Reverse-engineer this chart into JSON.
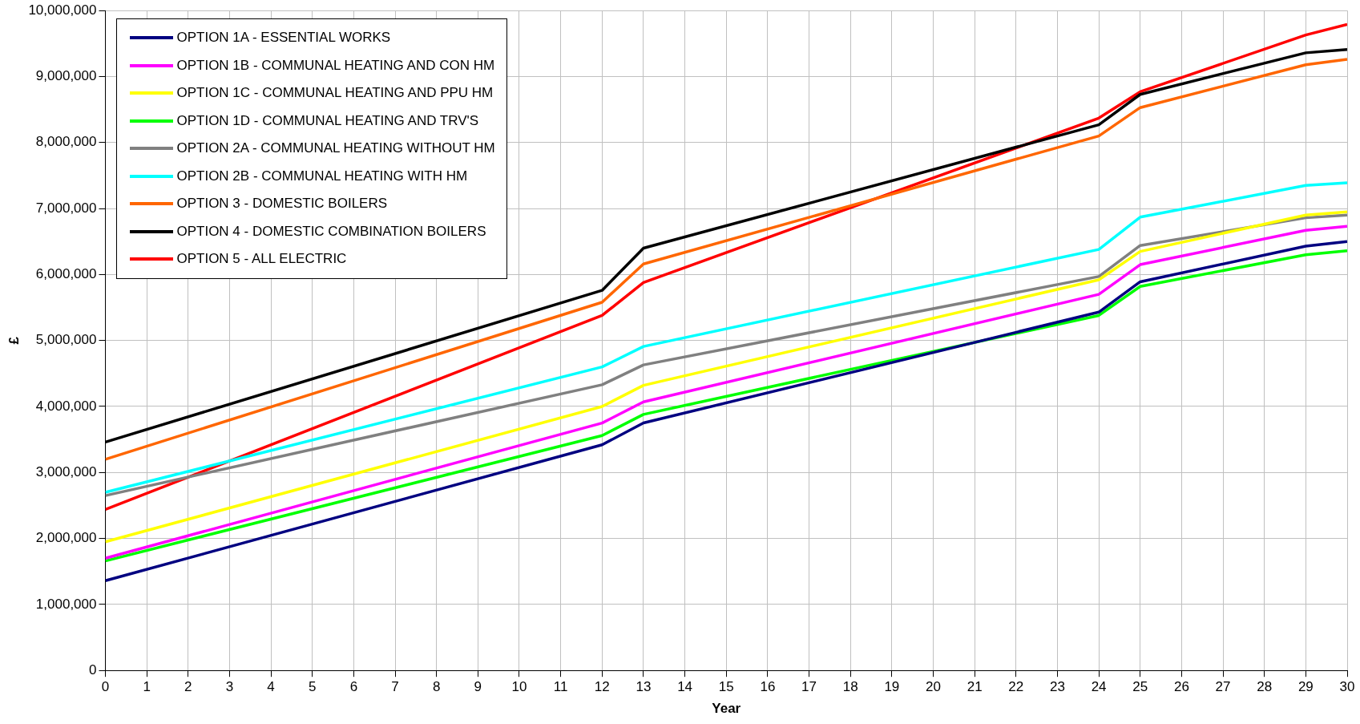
{
  "chart_data": {
    "type": "line",
    "xlabel": "Year",
    "ylabel": "£",
    "xlim": [
      0,
      30
    ],
    "xticks": [
      0,
      1,
      2,
      3,
      4,
      5,
      6,
      7,
      8,
      9,
      10,
      11,
      12,
      13,
      14,
      15,
      16,
      17,
      18,
      19,
      20,
      21,
      22,
      23,
      24,
      25,
      26,
      27,
      28,
      29,
      30
    ],
    "ylim": [
      0,
      10000000
    ],
    "yticks": [
      0,
      {
        "value": 1000000,
        "label": "1,000,000"
      },
      {
        "value": 2000000,
        "label": "2,000,000"
      },
      {
        "value": 3000000,
        "label": "3,000,000"
      },
      {
        "value": 4000000,
        "label": "4,000,000"
      },
      {
        "value": 5000000,
        "label": "5,000,000"
      },
      {
        "value": 6000000,
        "label": "6,000,000"
      },
      {
        "value": 7000000,
        "label": "7,000,000"
      },
      {
        "value": 8000000,
        "label": "8,000,000"
      },
      {
        "value": 9000000,
        "label": "9,000,000"
      },
      {
        "value": 10000000,
        "label": "10,000,000"
      }
    ],
    "grid": true,
    "legend": "top left",
    "marker": "none",
    "line_style": "solid",
    "x": [
      0,
      12,
      13,
      24,
      25,
      29,
      30
    ],
    "series": [
      {
        "name": "OPTION 1A - ESSENTIAL WORKS",
        "color": "#000080",
        "values": [
          1360000,
          3420000,
          3750000,
          5430000,
          5890000,
          6430000,
          6500000
        ]
      },
      {
        "name": "OPTION 1B - COMMUNAL HEATING AND CON HM",
        "color": "#ff00ff",
        "values": [
          1700000,
          3750000,
          4070000,
          5700000,
          6150000,
          6670000,
          6730000
        ]
      },
      {
        "name": "OPTION 1C - COMMUNAL HEATING AND PPU HM",
        "color": "#ffff00",
        "values": [
          1950000,
          4000000,
          4320000,
          5920000,
          6350000,
          6900000,
          6950000
        ]
      },
      {
        "name": "OPTION 1D - COMMUNAL HEATING AND TRV'S",
        "color": "#00ff00",
        "values": [
          1660000,
          3560000,
          3880000,
          5380000,
          5820000,
          6300000,
          6360000
        ]
      },
      {
        "name": "OPTION 2A - COMMUNAL HEATING WITHOUT HM",
        "color": "#808080",
        "values": [
          2650000,
          4330000,
          4630000,
          5970000,
          6440000,
          6860000,
          6900000
        ]
      },
      {
        "name": "OPTION 2B - COMMUNAL HEATING WITH HM",
        "color": "#00ffff",
        "values": [
          2700000,
          4600000,
          4910000,
          6380000,
          6870000,
          7350000,
          7390000
        ]
      },
      {
        "name": "OPTION 3 - DOMESTIC BOILERS",
        "color": "#ff6600",
        "values": [
          3200000,
          5580000,
          6160000,
          8100000,
          8530000,
          9180000,
          9260000
        ]
      },
      {
        "name": "OPTION 4 - DOMESTIC COMBINATION BOILERS",
        "color": "#000000",
        "values": [
          3460000,
          5760000,
          6400000,
          8270000,
          8730000,
          9360000,
          9410000
        ]
      },
      {
        "name": "OPTION 5 - ALL ELECTRIC",
        "color": "#ff0000",
        "values": [
          2440000,
          5380000,
          5880000,
          8370000,
          8770000,
          9630000,
          9790000
        ]
      }
    ]
  }
}
